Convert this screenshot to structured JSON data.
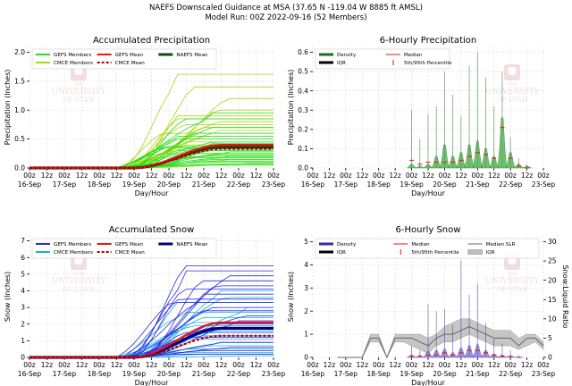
{
  "header": {
    "line1": "NAEFS Downscaled Guidance at MSA (37.65 N -119.04 W 8885 ft AMSL)",
    "line2": "Model Run: 00Z 2022-09-16 (52 Members)"
  },
  "logo": {
    "line1": "THE",
    "line2": "UNIVERSITY",
    "line3": "OF UTAH"
  },
  "colors": {
    "gefs_precip": "#22dd22",
    "cmce_precip": "#a8d80a",
    "naefs_precip": "#0c4a0c",
    "gefs_snow": "#2a2ae0",
    "cmce_snow": "#1cb0e0",
    "naefs_snow": "#00007a",
    "red": "#ee1111",
    "darkred": "#aa0000",
    "grid": "#d8d8d8",
    "logo": "#e8c4c4"
  },
  "x_axis": {
    "top_ticks": [
      "00z",
      "12z",
      "00z",
      "12z",
      "00z",
      "12z",
      "00z",
      "12z",
      "00z",
      "12z",
      "00z",
      "12z",
      "00z",
      "12z",
      "00z"
    ],
    "dates": [
      "16-Sep",
      "17-Sep",
      "18-Sep",
      "19-Sep",
      "20-Sep",
      "21-Sep",
      "22-Sep",
      "23-Sep"
    ],
    "label": "Day/Hour"
  },
  "chart_data": [
    {
      "id": "acc_precip",
      "type": "line",
      "title": "Accumulated Precipitation",
      "ylabel": "Precipitation (Inches)",
      "xlim": [
        0,
        168
      ],
      "ylim": [
        0,
        2.1
      ],
      "yticks": [
        "0.0",
        "0.5",
        "1.0",
        "1.5",
        "2.0"
      ],
      "ytick_values": [
        0,
        0.5,
        1.0,
        1.5,
        2.0
      ],
      "legend": [
        "GEFS Members",
        "CMCE Members",
        "GEFS Mean",
        "CMCE Mean",
        "NAEFS Mean"
      ],
      "gefs_finals": [
        0.05,
        0.07,
        0.1,
        0.12,
        0.15,
        0.18,
        0.2,
        0.22,
        0.25,
        0.28,
        0.3,
        0.33,
        0.35,
        0.38,
        0.42,
        0.45,
        0.5,
        0.55,
        0.6,
        0.7,
        0.85,
        0.95
      ],
      "cmce_finals": [
        0.08,
        0.15,
        0.2,
        0.25,
        0.3,
        0.35,
        0.4,
        0.45,
        0.5,
        0.55,
        0.6,
        0.65,
        0.7,
        0.75,
        0.8,
        0.85,
        0.9,
        1.0,
        1.2,
        1.4,
        1.62
      ],
      "means": {
        "gefs": 0.4,
        "cmce": 0.33,
        "naefs": 0.36
      }
    },
    {
      "id": "six_precip",
      "type": "bar",
      "title": "6-Hourly Precipitation",
      "ylabel": "Precipitation (Inches)",
      "xlim": [
        0,
        168
      ],
      "ylim": [
        0,
        0.63
      ],
      "yticks": [
        "0.0",
        "0.1",
        "0.2",
        "0.3",
        "0.4",
        "0.5",
        "0.6"
      ],
      "ytick_values": [
        0,
        0.1,
        0.2,
        0.3,
        0.4,
        0.5,
        0.6
      ],
      "legend": [
        "Density",
        "IQR",
        "Median",
        "5th/95th Percentile"
      ],
      "hours": [
        72,
        78,
        84,
        90,
        96,
        102,
        108,
        114,
        120,
        126,
        132,
        138,
        144,
        150,
        156
      ],
      "p95": [
        0.3,
        0.15,
        0.28,
        0.32,
        0.5,
        0.38,
        0.27,
        0.53,
        0.6,
        0.47,
        0.32,
        0.5,
        0.16,
        0.05,
        0.02
      ],
      "median": [
        0.04,
        0.02,
        0.03,
        0.03,
        0.03,
        0.03,
        0.04,
        0.06,
        0.08,
        0.07,
        0.05,
        0.21,
        0.05,
        0.01,
        0.0
      ],
      "density_peak": [
        0.02,
        0.01,
        0.02,
        0.06,
        0.12,
        0.06,
        0.08,
        0.12,
        0.14,
        0.1,
        0.06,
        0.26,
        0.08,
        0.02,
        0.01
      ]
    },
    {
      "id": "acc_snow",
      "type": "line",
      "title": "Accumulated Snow",
      "ylabel": "Snow (Inches)",
      "xlim": [
        0,
        168
      ],
      "ylim": [
        0,
        7.3
      ],
      "yticks": [
        "0",
        "1",
        "2",
        "3",
        "4",
        "5",
        "6",
        "7"
      ],
      "ytick_values": [
        0,
        1,
        2,
        3,
        4,
        5,
        6,
        7
      ],
      "legend": [
        "GEFS Members",
        "CMCE Members",
        "GEFS Mean",
        "CMCE Mean",
        "NAEFS Mean"
      ],
      "gefs_finals": [
        0.2,
        0.4,
        0.6,
        0.9,
        1.2,
        1.5,
        1.8,
        2.0,
        2.2,
        2.5,
        2.8,
        3.0,
        3.3,
        3.5,
        3.8,
        4.1,
        4.3,
        4.6,
        4.9,
        5.2,
        5.5
      ],
      "cmce_finals": [
        0.1,
        0.2,
        0.3,
        0.5,
        0.7,
        0.9,
        1.1,
        1.3,
        1.6,
        1.9,
        2.1,
        2.4,
        2.7,
        3.0,
        3.3,
        3.6,
        4.0
      ],
      "means": {
        "gefs": 2.1,
        "cmce": 1.3,
        "naefs": 1.75
      }
    },
    {
      "id": "six_snow",
      "type": "bar",
      "title": "6-Hourly Snow",
      "ylabel": "Snow (Inches)",
      "y2label": "Snow:Liquid Ratio",
      "xlim": [
        0,
        168
      ],
      "ylim": [
        0,
        5.25
      ],
      "yticks": [
        "0",
        "1",
        "2",
        "3",
        "4",
        "5"
      ],
      "ytick_values": [
        0,
        1,
        2,
        3,
        4,
        5
      ],
      "y2lim": [
        0,
        31.5
      ],
      "y2ticks": [
        "0",
        "5",
        "10",
        "15",
        "20",
        "25",
        "30"
      ],
      "y2tick_values": [
        0,
        5,
        10,
        15,
        20,
        25,
        30
      ],
      "legend": [
        "Density",
        "IQR",
        "Median",
        "5th/95th Percentile",
        "Median SLR",
        "IQR"
      ],
      "hours": [
        72,
        78,
        84,
        90,
        96,
        102,
        108,
        114,
        120,
        126,
        132,
        138,
        144,
        150
      ],
      "p95": [
        0.5,
        0.3,
        2.3,
        2.0,
        2.1,
        1.4,
        4.2,
        2.7,
        3.2,
        1.5,
        0.8,
        0.6,
        0.3,
        0.1
      ],
      "median": [
        0.05,
        0.05,
        0.1,
        0.1,
        0.2,
        0.1,
        0.2,
        0.3,
        0.3,
        0.2,
        0.1,
        0.05,
        0.05,
        0.0
      ],
      "density_peak": [
        0.1,
        0.08,
        0.25,
        0.3,
        0.35,
        0.2,
        0.4,
        0.5,
        0.55,
        0.3,
        0.15,
        0.1,
        0.05,
        0.02
      ],
      "slr_hours": [
        18,
        24,
        30,
        36,
        42,
        48,
        54,
        60,
        66,
        72,
        78,
        84,
        90,
        96,
        102,
        108,
        114,
        120,
        126,
        132,
        138,
        144,
        150,
        156,
        162,
        168
      ],
      "slr_median": [
        0,
        0,
        0,
        0,
        5,
        5,
        0,
        5,
        5,
        5,
        4,
        3,
        5,
        6,
        6,
        7,
        8,
        7,
        6,
        5,
        5,
        5,
        3,
        5,
        5,
        3
      ],
      "slr_q1": [
        0,
        0,
        0,
        0,
        4,
        4,
        0,
        4,
        4,
        3,
        2,
        1,
        3,
        4,
        4,
        5,
        6,
        5,
        4,
        3,
        3,
        3,
        2,
        3,
        4,
        2
      ],
      "slr_q3": [
        0,
        0,
        0,
        0,
        6,
        6,
        0,
        6,
        6,
        6,
        6,
        5,
        6,
        8,
        9,
        10,
        10,
        9,
        8,
        7,
        7,
        7,
        5,
        6,
        6,
        4
      ]
    }
  ]
}
